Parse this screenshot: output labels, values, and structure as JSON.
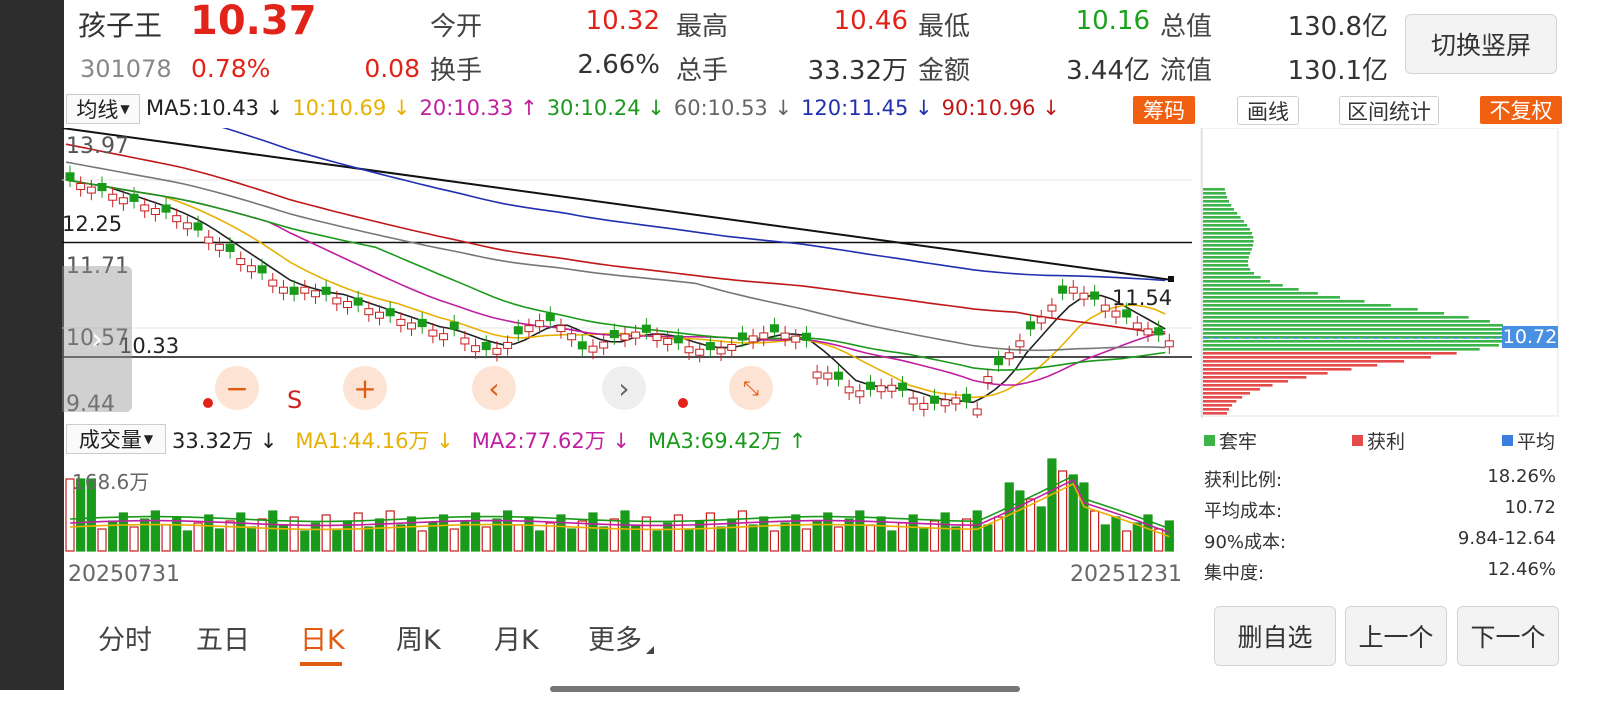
{
  "stock": {
    "name": "孩子王",
    "price": "10.37",
    "code": "301078",
    "pct": "0.78%",
    "change": "0.08"
  },
  "quote": [
    {
      "label": "今开",
      "value": "10.32",
      "color": "#e2231a"
    },
    {
      "label": "最高",
      "value": "10.46",
      "color": "#e2231a"
    },
    {
      "label": "最低",
      "value": "10.16",
      "color": "#1aa31a"
    },
    {
      "label": "总值",
      "value": "130.8亿",
      "color": "#333333"
    },
    {
      "label": "换手",
      "value": "2.66%",
      "color": "#333333"
    },
    {
      "label": "总手",
      "value": "33.32万",
      "color": "#333333"
    },
    {
      "label": "金额",
      "value": "3.44亿",
      "color": "#333333"
    },
    {
      "label": "流值",
      "value": "130.1亿",
      "color": "#333333"
    }
  ],
  "switch_button": "切换竖屏",
  "ma_bar": {
    "selector": "均线",
    "items": [
      {
        "text": "MA5:10.43 ↓",
        "color": "#222222"
      },
      {
        "text": "10:10.69 ↓",
        "color": "#e8b000"
      },
      {
        "text": "20:10.33 ↑",
        "color": "#c020a0"
      },
      {
        "text": "30:10.24 ↓",
        "color": "#1a9a1a"
      },
      {
        "text": "60:10.53 ↓",
        "color": "#666666"
      },
      {
        "text": "120:11.45 ↓",
        "color": "#2030b0"
      },
      {
        "text": "90:10.96 ↓",
        "color": "#c01818"
      }
    ]
  },
  "tools": {
    "chips": "筹码",
    "draw": "画线",
    "range_stats": "区间统计",
    "no_adjust": "不复权"
  },
  "price_axis": {
    "p1": "13.97",
    "p2": "12.25",
    "p3": "11.71",
    "p4": "10.57",
    "p5": "9.44",
    "line_high": "12.25",
    "line_low": "10.33",
    "peak": "11.54",
    "current_chip": "10.72"
  },
  "chart_data": {
    "type": "candlestick",
    "title": "",
    "xlabel": "",
    "ylabel": "",
    "x_start": "20250731",
    "x_end": "20251231",
    "ylim": [
      9.44,
      13.97
    ],
    "moving_averages": {
      "MA5": 10.43,
      "MA10": 10.69,
      "MA20": 10.33,
      "MA30": 10.24,
      "MA60": 10.53,
      "MA120": 11.45,
      "MA90": 10.96
    },
    "horizontal_lines": [
      12.25,
      10.33
    ],
    "annotations": [
      "11.54"
    ],
    "volume": {
      "axis_top": "168.6万",
      "current": "33.32万",
      "MA1": 44.16,
      "MA2": 77.62,
      "MA3": 69.42
    },
    "chip_distribution": {
      "avg_cost": 10.72
    }
  },
  "volume_bar": {
    "selector": "成交量",
    "current": "33.32万 ↓",
    "ma1": "MA1:44.16万 ↓",
    "ma2": "MA2:77.62万 ↓",
    "ma3": "MA3:69.42万 ↑",
    "axis_top": "168.6万"
  },
  "dates": {
    "start": "20250731",
    "end": "20251231"
  },
  "chip_legend": {
    "trapped": "套牢",
    "profit": "获利",
    "average": "平均"
  },
  "chip_stats": [
    {
      "label": "获利比例:",
      "value": "18.26%"
    },
    {
      "label": "平均成本:",
      "value": "10.72"
    },
    {
      "label": "90%成本:",
      "value": "9.84-12.64"
    },
    {
      "label": "集中度:",
      "value": "12.46%"
    }
  ],
  "controls": {
    "minus": "−",
    "s": "S",
    "plus": "+",
    "prev": "‹",
    "next": "›"
  },
  "tabs": [
    "分时",
    "五日",
    "日K",
    "周K",
    "月K",
    "更多"
  ],
  "active_tab": "日K",
  "actions": {
    "remove": "删自选",
    "prev": "上一个",
    "next": "下一个"
  }
}
